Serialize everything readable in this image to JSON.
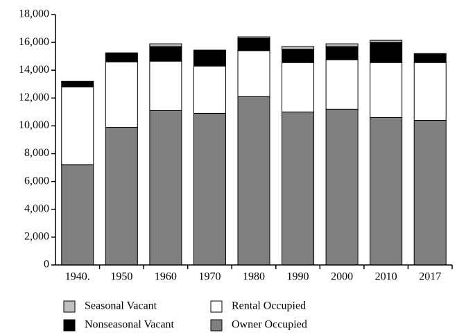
{
  "chart_data": {
    "type": "stacked_bar",
    "categories": [
      "1940.",
      "1950",
      "1960",
      "1970",
      "1980",
      "1990",
      "2000",
      "2010",
      "2017"
    ],
    "series": [
      {
        "name": "Owner Occupied",
        "color": "#808080",
        "values": [
          7200,
          9900,
          11100,
          10900,
          12100,
          11000,
          11200,
          10600,
          10400
        ]
      },
      {
        "name": "Rental Occupied",
        "color": "#ffffff",
        "values": [
          5600,
          4700,
          3550,
          3400,
          3300,
          3550,
          3550,
          3950,
          4150
        ]
      },
      {
        "name": "Nonseasonal Vacant",
        "color": "#000000",
        "values": [
          400,
          650,
          1050,
          1150,
          900,
          950,
          950,
          1450,
          650
        ]
      },
      {
        "name": "Seasonal Vacant",
        "color": "#c0c0c0",
        "values": [
          0,
          0,
          200,
          0,
          100,
          200,
          200,
          150,
          0
        ]
      }
    ],
    "ylim": [
      0,
      18000
    ],
    "yticks": [
      0,
      {
        "value": 2000,
        "label": "2,000"
      },
      {
        "value": 4000,
        "label": "4,000"
      },
      {
        "value": 6000,
        "label": "6,000"
      },
      {
        "value": 8000,
        "label": "8,000"
      },
      {
        "value": 10000,
        "label": "10,000"
      },
      {
        "value": 12000,
        "label": "12,000"
      },
      {
        "value": 14000,
        "label": "14,000"
      },
      {
        "value": 16000,
        "label": "16,000"
      },
      {
        "value": 18000,
        "label": "18,000"
      }
    ]
  }
}
